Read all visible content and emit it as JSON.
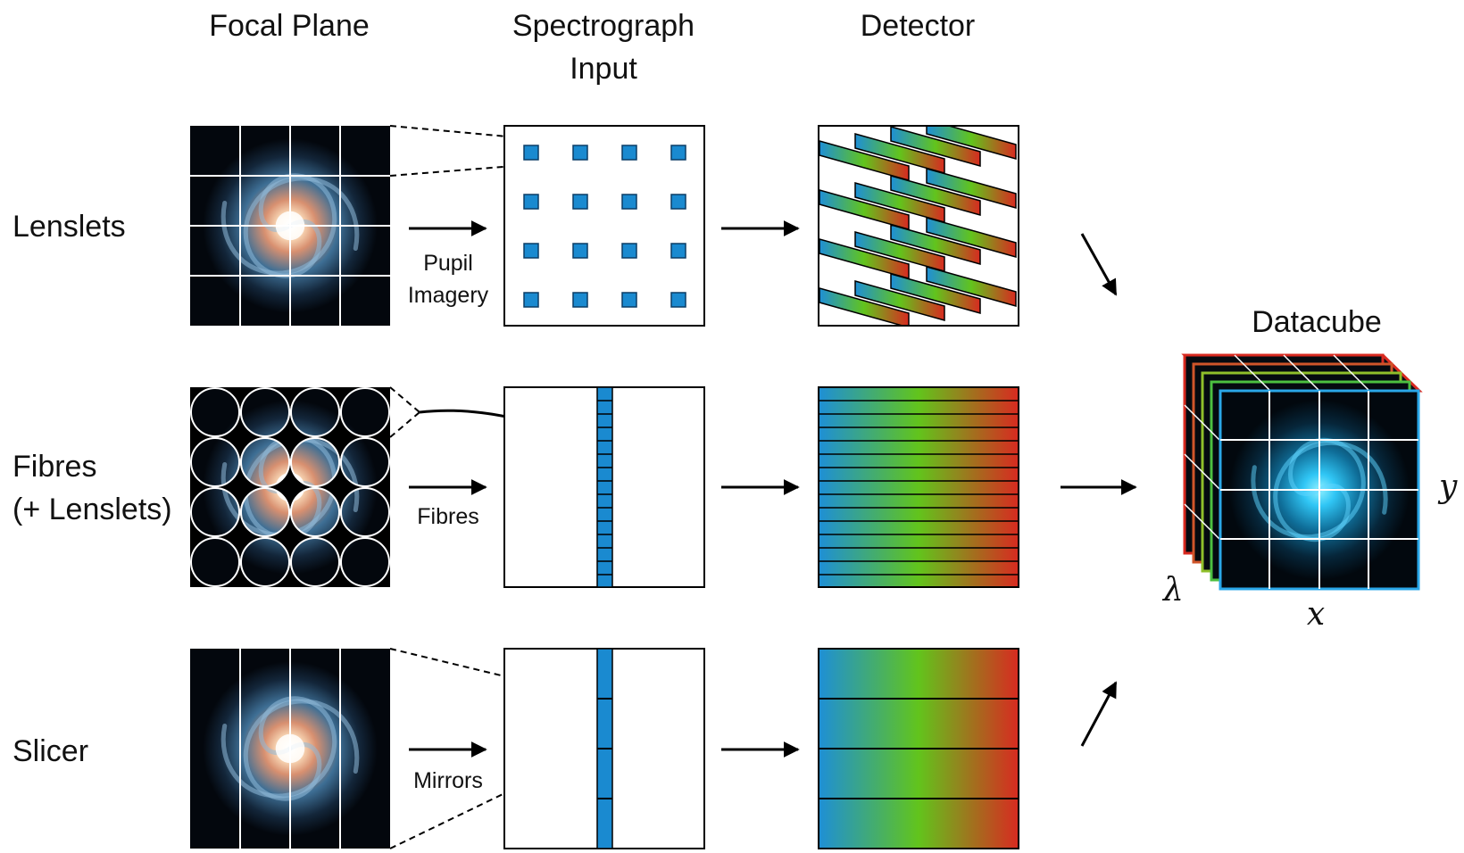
{
  "columns": {
    "focal_plane": "Focal Plane",
    "spectrograph_line1": "Spectrograph",
    "spectrograph_line2": "Input",
    "detector": "Detector",
    "datacube": "Datacube"
  },
  "rows": {
    "lenslets": {
      "label": "Lenslets",
      "method_line1": "Pupil",
      "method_line2": "Imagery"
    },
    "fibres": {
      "label_line1": "Fibres",
      "label_line2": "(+ Lenslets)",
      "method": "Fibres"
    },
    "slicer": {
      "label": "Slicer",
      "method": "Mirrors"
    }
  },
  "axes": {
    "x": "x",
    "y": "y",
    "lambda": "λ"
  },
  "colors": {
    "spectrum_start": "#1e8fd6",
    "spectrum_mid": "#62c41c",
    "spectrum_end": "#d82a20",
    "square_fill": "#1a8ad0",
    "galaxy_core": "#ffe7c8",
    "galaxy_arm": "#4f86ad",
    "cube_galaxy": "#35c4f2",
    "background_dark": "#000000"
  }
}
